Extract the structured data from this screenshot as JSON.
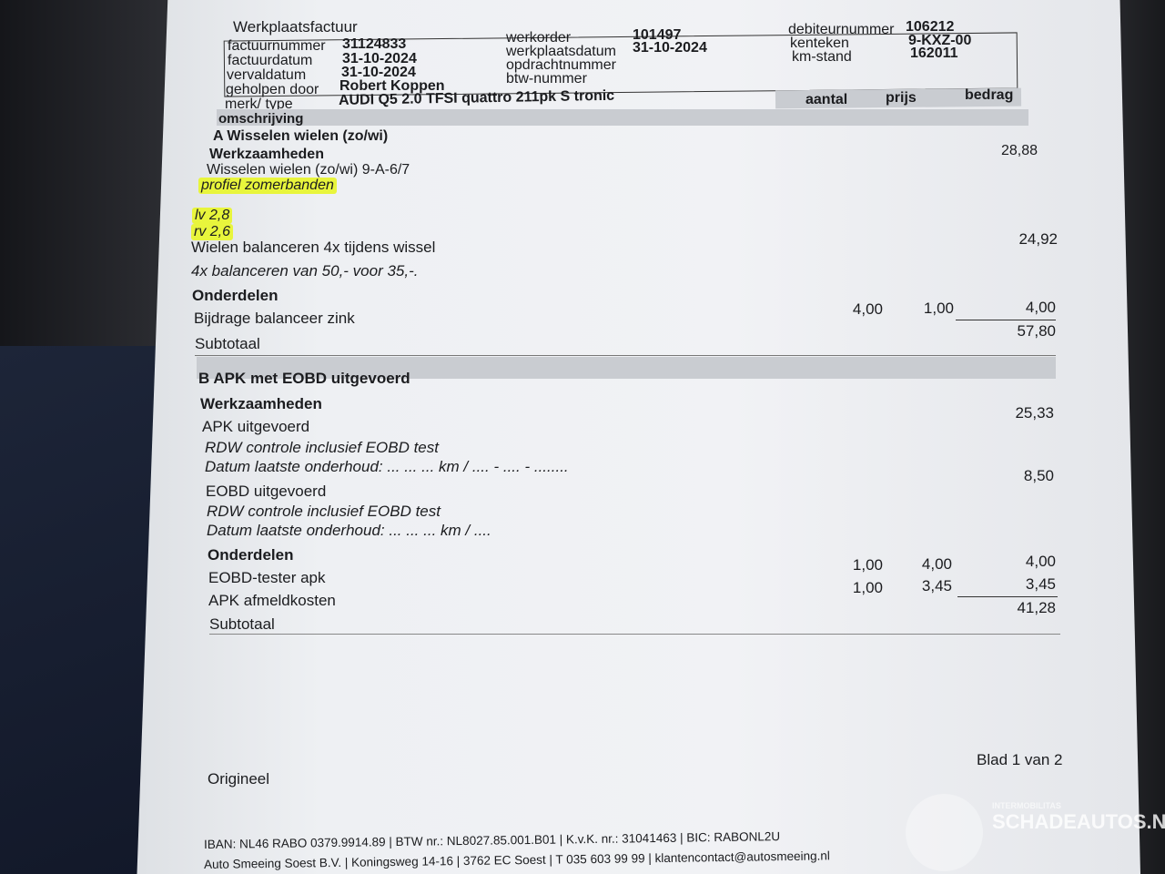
{
  "title": "Werkplaatsfactuur",
  "header": {
    "factuurnummer_label": "factuurnummer",
    "factuurnummer": "31124833",
    "factuurdatum_label": "factuurdatum",
    "factuurdatum": "31-10-2024",
    "vervaldatum_label": "vervaldatum",
    "vervaldatum": "31-10-2024",
    "geholpen_label": "geholpen door",
    "geholpen": "Robert Koppen",
    "merk_label": "merk/ type",
    "merk": "AUDI Q5 2.0 TFSI quattro 211pk S tronic",
    "werkorder_label": "werkorder",
    "werkorder": "101497",
    "werkplaatsdatum_label": "werkplaatsdatum",
    "werkplaatsdatum": "31-10-2024",
    "opdracht_label": "opdrachtnummer",
    "btw_label": "btw-nummer",
    "debiteur_label": "debiteurnummer",
    "debiteur": "106212",
    "kenteken_label": "kenteken",
    "kenteken": "9-KXZ-00",
    "km_label": "km-stand",
    "km": "162011"
  },
  "columns": {
    "omschrijving": "omschrijving",
    "aantal": "aantal",
    "prijs": "prijs",
    "bedrag": "bedrag"
  },
  "sectionA": {
    "title": "A Wisselen wielen (zo/wi)",
    "werk": "Werkzaamheden",
    "item1": "Wisselen wielen (zo/wi) 9-A-6/7",
    "item1_amount": "28,88",
    "note1": "profiel zomerbanden",
    "note2": "lv 2,8",
    "note3": "rv 2,6",
    "item2": "Wielen balanceren 4x tijdens wissel",
    "item2_amount": "24,92",
    "item2_note": "4x balanceren van 50,- voor 35,-.",
    "onderdelen": "Onderdelen",
    "part1": "Bijdrage balanceer zink",
    "part1_aantal": "4,00",
    "part1_prijs": "1,00",
    "part1_bedrag": "4,00",
    "subtotaal_label": "Subtotaal",
    "subtotaal": "57,80"
  },
  "sectionB": {
    "title": "B APK met EOBD uitgevoerd",
    "werk": "Werkzaamheden",
    "item1": "APK uitgevoerd",
    "item1_amount": "25,33",
    "item1_note1": "RDW controle inclusief EOBD test",
    "item1_note2": "Datum laatste onderhoud: ... ... ... km / .... - .... - ........",
    "item2": "EOBD uitgevoerd",
    "item2_amount": "8,50",
    "item2_note1": "RDW controle inclusief EOBD test",
    "item2_note2": "Datum laatste onderhoud: ... ... ... km / ....",
    "onderdelen": "Onderdelen",
    "part1": "EOBD-tester apk",
    "part1_aantal": "1,00",
    "part1_prijs": "4,00",
    "part1_bedrag": "4,00",
    "part2": "APK afmeldkosten",
    "part2_aantal": "1,00",
    "part2_prijs": "3,45",
    "part2_bedrag": "3,45",
    "subtotaal_label": "Subtotaal",
    "subtotaal": "41,28"
  },
  "page": "Blad 1 van 2",
  "origineel": "Origineel",
  "footer": {
    "line1": "IBAN: NL46 RABO 0379.9914.89 | BTW nr.: NL8027.85.001.B01 | K.v.K. nr.: 31041463 | BIC: RABONL2U",
    "line2": "Auto Smeeing Soest B.V. | Koningsweg 14-16 | 3762 EC Soest | T 035 603 99 99 | klantencontact@autosmeeing.nl"
  },
  "watermark": {
    "small": "INTERMOBILITAS",
    "big": "SCHADEAUTOS.NL"
  },
  "colors": {
    "highlight": "#e8f53c",
    "paper": "#f1f2f5"
  }
}
